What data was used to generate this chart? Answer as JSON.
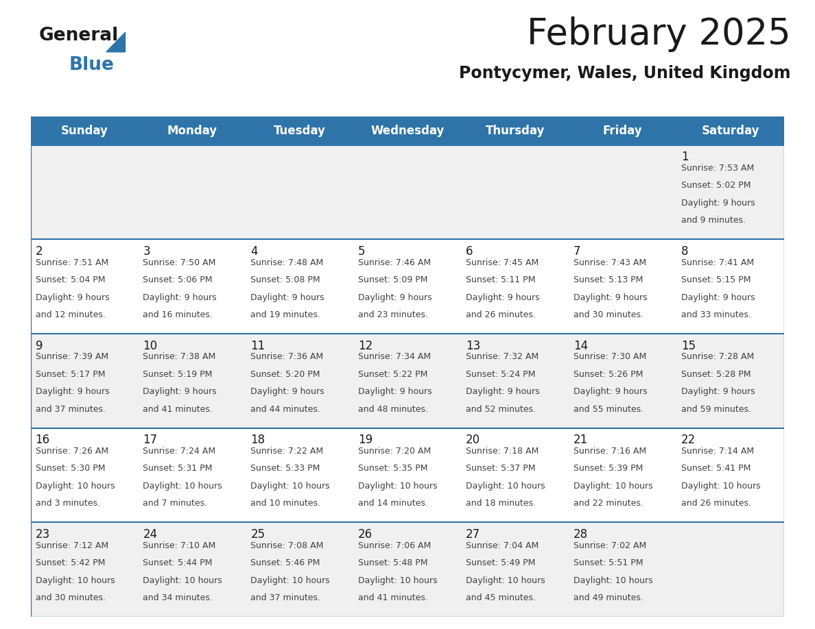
{
  "title": "February 2025",
  "subtitle": "Pontycymer, Wales, United Kingdom",
  "days_of_week": [
    "Sunday",
    "Monday",
    "Tuesday",
    "Wednesday",
    "Thursday",
    "Friday",
    "Saturday"
  ],
  "header_bg": "#2E74A8",
  "header_text": "#FFFFFF",
  "row_bg_light": "#F0F0F0",
  "row_bg_white": "#FFFFFF",
  "divider_color": "#2E74A8",
  "cell_text_color": "#404040",
  "day_num_color": "#1A1A1A",
  "calendar_data": [
    [
      null,
      null,
      null,
      null,
      null,
      null,
      {
        "day": 1,
        "sunrise": "7:53 AM",
        "sunset": "5:02 PM",
        "daylight": "9 hours and 9 minutes"
      }
    ],
    [
      {
        "day": 2,
        "sunrise": "7:51 AM",
        "sunset": "5:04 PM",
        "daylight": "9 hours and 12 minutes"
      },
      {
        "day": 3,
        "sunrise": "7:50 AM",
        "sunset": "5:06 PM",
        "daylight": "9 hours and 16 minutes"
      },
      {
        "day": 4,
        "sunrise": "7:48 AM",
        "sunset": "5:08 PM",
        "daylight": "9 hours and 19 minutes"
      },
      {
        "day": 5,
        "sunrise": "7:46 AM",
        "sunset": "5:09 PM",
        "daylight": "9 hours and 23 minutes"
      },
      {
        "day": 6,
        "sunrise": "7:45 AM",
        "sunset": "5:11 PM",
        "daylight": "9 hours and 26 minutes"
      },
      {
        "day": 7,
        "sunrise": "7:43 AM",
        "sunset": "5:13 PM",
        "daylight": "9 hours and 30 minutes"
      },
      {
        "day": 8,
        "sunrise": "7:41 AM",
        "sunset": "5:15 PM",
        "daylight": "9 hours and 33 minutes"
      }
    ],
    [
      {
        "day": 9,
        "sunrise": "7:39 AM",
        "sunset": "5:17 PM",
        "daylight": "9 hours and 37 minutes"
      },
      {
        "day": 10,
        "sunrise": "7:38 AM",
        "sunset": "5:19 PM",
        "daylight": "9 hours and 41 minutes"
      },
      {
        "day": 11,
        "sunrise": "7:36 AM",
        "sunset": "5:20 PM",
        "daylight": "9 hours and 44 minutes"
      },
      {
        "day": 12,
        "sunrise": "7:34 AM",
        "sunset": "5:22 PM",
        "daylight": "9 hours and 48 minutes"
      },
      {
        "day": 13,
        "sunrise": "7:32 AM",
        "sunset": "5:24 PM",
        "daylight": "9 hours and 52 minutes"
      },
      {
        "day": 14,
        "sunrise": "7:30 AM",
        "sunset": "5:26 PM",
        "daylight": "9 hours and 55 minutes"
      },
      {
        "day": 15,
        "sunrise": "7:28 AM",
        "sunset": "5:28 PM",
        "daylight": "9 hours and 59 minutes"
      }
    ],
    [
      {
        "day": 16,
        "sunrise": "7:26 AM",
        "sunset": "5:30 PM",
        "daylight": "10 hours and 3 minutes"
      },
      {
        "day": 17,
        "sunrise": "7:24 AM",
        "sunset": "5:31 PM",
        "daylight": "10 hours and 7 minutes"
      },
      {
        "day": 18,
        "sunrise": "7:22 AM",
        "sunset": "5:33 PM",
        "daylight": "10 hours and 10 minutes"
      },
      {
        "day": 19,
        "sunrise": "7:20 AM",
        "sunset": "5:35 PM",
        "daylight": "10 hours and 14 minutes"
      },
      {
        "day": 20,
        "sunrise": "7:18 AM",
        "sunset": "5:37 PM",
        "daylight": "10 hours and 18 minutes"
      },
      {
        "day": 21,
        "sunrise": "7:16 AM",
        "sunset": "5:39 PM",
        "daylight": "10 hours and 22 minutes"
      },
      {
        "day": 22,
        "sunrise": "7:14 AM",
        "sunset": "5:41 PM",
        "daylight": "10 hours and 26 minutes"
      }
    ],
    [
      {
        "day": 23,
        "sunrise": "7:12 AM",
        "sunset": "5:42 PM",
        "daylight": "10 hours and 30 minutes"
      },
      {
        "day": 24,
        "sunrise": "7:10 AM",
        "sunset": "5:44 PM",
        "daylight": "10 hours and 34 minutes"
      },
      {
        "day": 25,
        "sunrise": "7:08 AM",
        "sunset": "5:46 PM",
        "daylight": "10 hours and 37 minutes"
      },
      {
        "day": 26,
        "sunrise": "7:06 AM",
        "sunset": "5:48 PM",
        "daylight": "10 hours and 41 minutes"
      },
      {
        "day": 27,
        "sunrise": "7:04 AM",
        "sunset": "5:49 PM",
        "daylight": "10 hours and 45 minutes"
      },
      {
        "day": 28,
        "sunrise": "7:02 AM",
        "sunset": "5:51 PM",
        "daylight": "10 hours and 49 minutes"
      },
      null
    ]
  ],
  "title_fontsize": 38,
  "subtitle_fontsize": 17,
  "header_fontsize": 12,
  "day_num_fontsize": 12,
  "cell_text_fontsize": 9.0
}
